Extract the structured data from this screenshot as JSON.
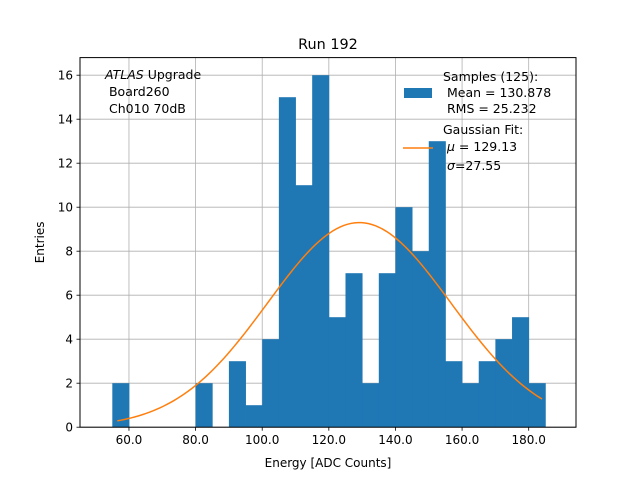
{
  "chart_data": {
    "type": "bar",
    "title": "Run 192",
    "xlabel": "Energy [ADC Counts]",
    "ylabel": "Entries",
    "xlim": [
      45.3,
      194.2
    ],
    "ylim": [
      0,
      16.8
    ],
    "xticks": [
      60,
      80,
      100,
      120,
      140,
      160,
      180
    ],
    "xtick_labels": [
      "60.0",
      "80.0",
      "100.0",
      "120.0",
      "140.0",
      "160.0",
      "180.0"
    ],
    "yticks": [
      0,
      2,
      4,
      6,
      8,
      10,
      12,
      14,
      16
    ],
    "ytick_labels": [
      "0",
      "2",
      "4",
      "6",
      "8",
      "10",
      "12",
      "14",
      "16"
    ],
    "grid": true,
    "bar_color": "#1f77b4",
    "fit_color": "#ff7f0e",
    "bins": [
      {
        "left": 55.0,
        "right": 60.0,
        "value": 2
      },
      {
        "left": 60.0,
        "right": 65.0,
        "value": 0
      },
      {
        "left": 65.0,
        "right": 70.0,
        "value": 0
      },
      {
        "left": 70.0,
        "right": 75.0,
        "value": 0
      },
      {
        "left": 75.0,
        "right": 80.0,
        "value": 0
      },
      {
        "left": 80.0,
        "right": 85.0,
        "value": 2
      },
      {
        "left": 85.0,
        "right": 90.0,
        "value": 0
      },
      {
        "left": 90.0,
        "right": 95.0,
        "value": 3
      },
      {
        "left": 95.0,
        "right": 100.0,
        "value": 1
      },
      {
        "left": 100.0,
        "right": 105.0,
        "value": 4
      },
      {
        "left": 105.0,
        "right": 110.0,
        "value": 15
      },
      {
        "left": 110.0,
        "right": 115.0,
        "value": 11
      },
      {
        "left": 115.0,
        "right": 120.0,
        "value": 16
      },
      {
        "left": 120.0,
        "right": 125.0,
        "value": 5
      },
      {
        "left": 125.0,
        "right": 130.0,
        "value": 7
      },
      {
        "left": 130.0,
        "right": 135.0,
        "value": 2
      },
      {
        "left": 135.0,
        "right": 140.0,
        "value": 7
      },
      {
        "left": 140.0,
        "right": 145.0,
        "value": 10
      },
      {
        "left": 145.0,
        "right": 150.0,
        "value": 8
      },
      {
        "left": 150.0,
        "right": 155.0,
        "value": 13
      },
      {
        "left": 155.0,
        "right": 160.0,
        "value": 3
      },
      {
        "left": 160.0,
        "right": 165.0,
        "value": 2
      },
      {
        "left": 165.0,
        "right": 170.0,
        "value": 3
      },
      {
        "left": 170.0,
        "right": 175.0,
        "value": 4
      },
      {
        "left": 175.0,
        "right": 180.0,
        "value": 5
      },
      {
        "left": 180.0,
        "right": 185.0,
        "value": 2
      }
    ],
    "fit": {
      "mu": 129.13,
      "sigma": 27.55,
      "amplitude": 9.3,
      "x_range": [
        56.5,
        184.0
      ]
    },
    "annotation": {
      "prefix": "ATLAS",
      "suffix": " Upgrade",
      "lines": [
        " Board260",
        " Ch010 70dB"
      ]
    },
    "legend": {
      "position": "upper right",
      "samples": {
        "title": "Samples (125):",
        "mean": " Mean = 130.878",
        "rms": " RMS = 25.232"
      },
      "fit": {
        "title": "Gaussian Fit:",
        "mu": " = 129.13",
        "sigma": "=27.55"
      }
    }
  }
}
